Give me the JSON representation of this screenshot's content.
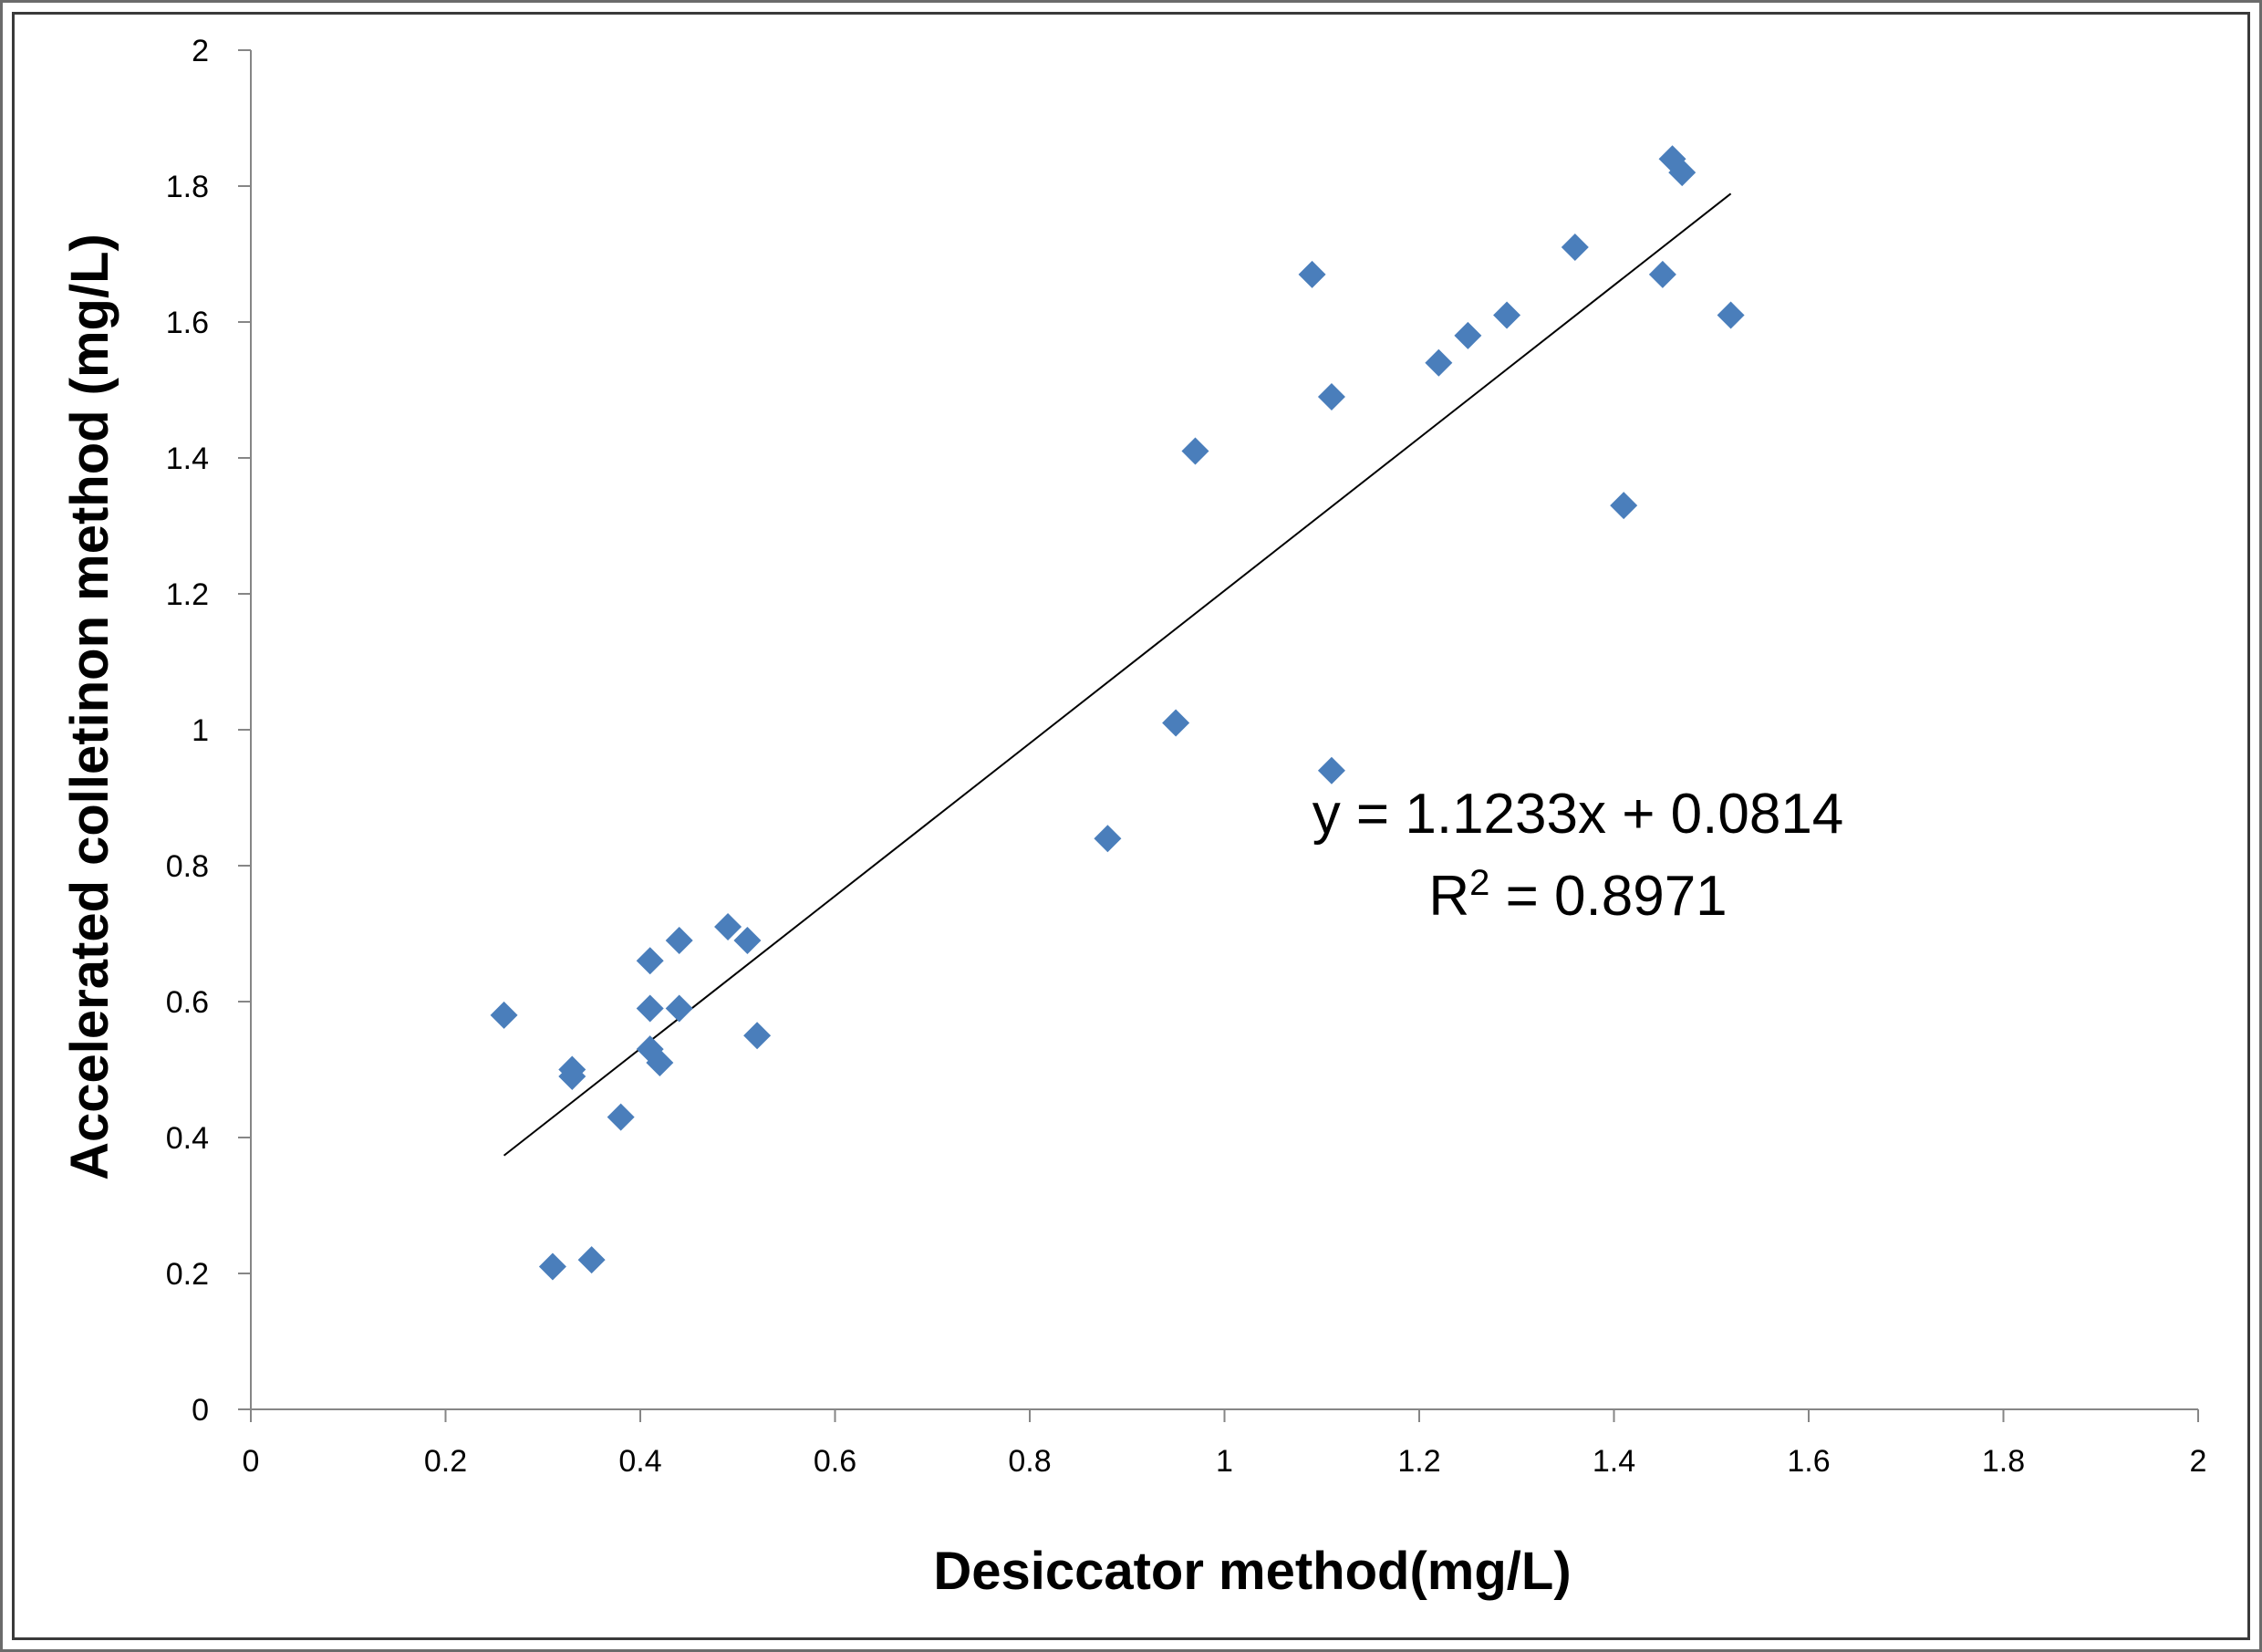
{
  "chart_data": {
    "type": "scatter",
    "title": "",
    "xlabel": "Desiccator method(mg/L)",
    "ylabel": "Accelerated colletinon method (mg/L)",
    "xlim": [
      0,
      2
    ],
    "ylim": [
      0,
      2
    ],
    "xticks": [
      "0",
      "0.2",
      "0.4",
      "0.6",
      "0.8",
      "1",
      "1.2",
      "1.4",
      "1.6",
      "1.8",
      "2"
    ],
    "yticks": [
      "0",
      "0.2",
      "0.4",
      "0.6",
      "0.8",
      "1",
      "1.2",
      "1.4",
      "1.6",
      "1.8",
      "2"
    ],
    "grid": false,
    "legend": "none",
    "marker_color": "#4a7ebb",
    "series": [
      {
        "points": [
          [
            0.26,
            0.58
          ],
          [
            0.31,
            0.21
          ],
          [
            0.33,
            0.49
          ],
          [
            0.33,
            0.5
          ],
          [
            0.35,
            0.22
          ],
          [
            0.38,
            0.43
          ],
          [
            0.41,
            0.66
          ],
          [
            0.41,
            0.59
          ],
          [
            0.41,
            0.53
          ],
          [
            0.42,
            0.51
          ],
          [
            0.44,
            0.69
          ],
          [
            0.44,
            0.59
          ],
          [
            0.49,
            0.71
          ],
          [
            0.51,
            0.69
          ],
          [
            0.52,
            0.55
          ],
          [
            0.88,
            0.84
          ],
          [
            0.95,
            1.01
          ],
          [
            0.97,
            1.41
          ],
          [
            1.09,
            1.67
          ],
          [
            1.11,
            1.49
          ],
          [
            1.11,
            0.94
          ],
          [
            1.22,
            1.54
          ],
          [
            1.25,
            1.58
          ],
          [
            1.29,
            1.61
          ],
          [
            1.36,
            1.71
          ],
          [
            1.41,
            1.33
          ],
          [
            1.45,
            1.67
          ],
          [
            1.46,
            1.84
          ],
          [
            1.47,
            1.82
          ],
          [
            1.52,
            1.61
          ]
        ]
      }
    ],
    "trendline": {
      "slope": 1.1233,
      "intercept": 0.0814,
      "x_range": [
        0.26,
        1.52
      ],
      "equation_text": "y = 1.1233x + 0.0814",
      "r2_prefix": "R",
      "r2_sup": "2",
      "r2_suffix": " = 0.8971"
    }
  }
}
